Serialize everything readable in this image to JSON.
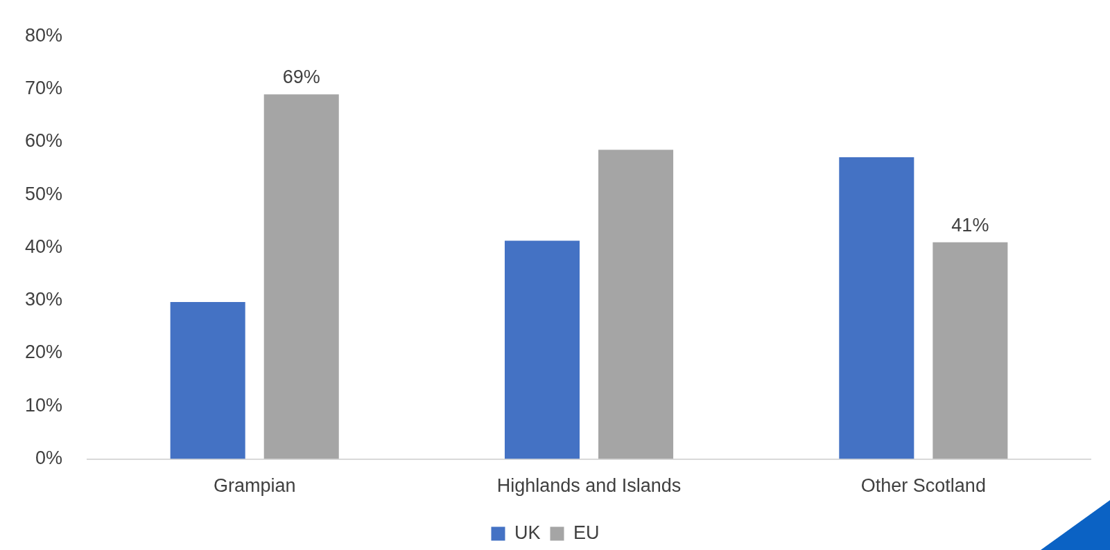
{
  "chart_data": {
    "type": "bar",
    "categories": [
      "Grampian",
      "Highlands and Islands",
      "Other Scotland"
    ],
    "series": [
      {
        "name": "UK",
        "color": "#4472c4",
        "values": [
          29.7,
          41.3,
          57.1
        ]
      },
      {
        "name": "EU",
        "color": "#a5a5a5",
        "values": [
          69,
          58.5,
          41
        ],
        "value_labels": [
          "69%",
          null,
          "41%"
        ]
      }
    ],
    "ylim": [
      0,
      80
    ],
    "yticks": [
      {
        "value": 0,
        "label": "0%"
      },
      {
        "value": 10,
        "label": "10%"
      },
      {
        "value": 20,
        "label": "20%"
      },
      {
        "value": 30,
        "label": "30%"
      },
      {
        "value": 40,
        "label": "40%"
      },
      {
        "value": 50,
        "label": "50%"
      },
      {
        "value": 60,
        "label": "60%"
      },
      {
        "value": 70,
        "label": "70%"
      },
      {
        "value": 80,
        "label": "80%"
      }
    ],
    "grid": false,
    "legend": "bottom"
  }
}
